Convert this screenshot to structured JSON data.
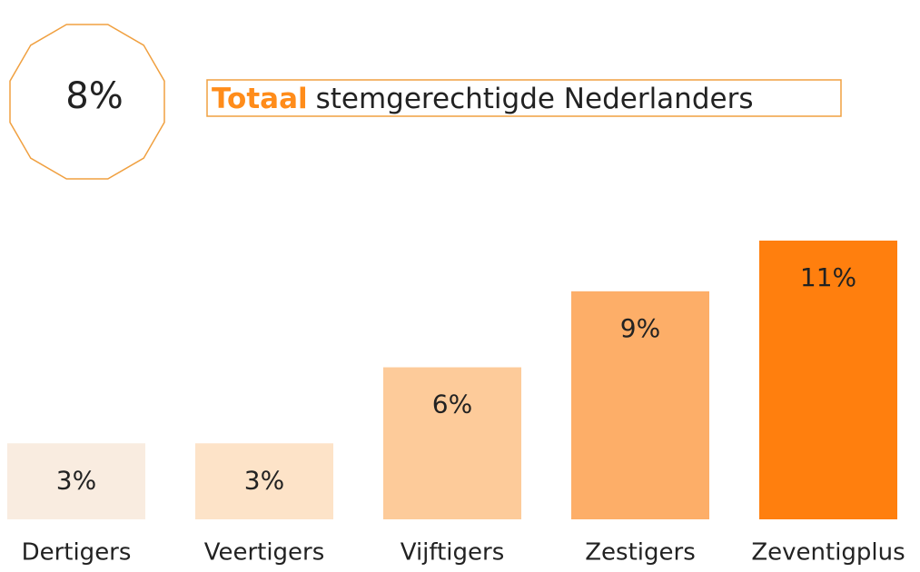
{
  "header": {
    "total": "8%",
    "title_bold": "Totaal",
    "title_rest": "stemgerechtigde Nederlanders"
  },
  "chart_data": {
    "type": "bar",
    "categories": [
      "Dertigers",
      "Veertigers",
      "Vijftigers",
      "Zestigers",
      "Zeventigplus"
    ],
    "values": [
      3,
      3,
      6,
      9,
      11
    ],
    "value_labels": [
      "3%",
      "3%",
      "6%",
      "9%",
      "11%"
    ],
    "colors": [
      "#f9ece0",
      "#fde3c8",
      "#fdcb9a",
      "#fdae68",
      "#ff7f0e"
    ]
  }
}
